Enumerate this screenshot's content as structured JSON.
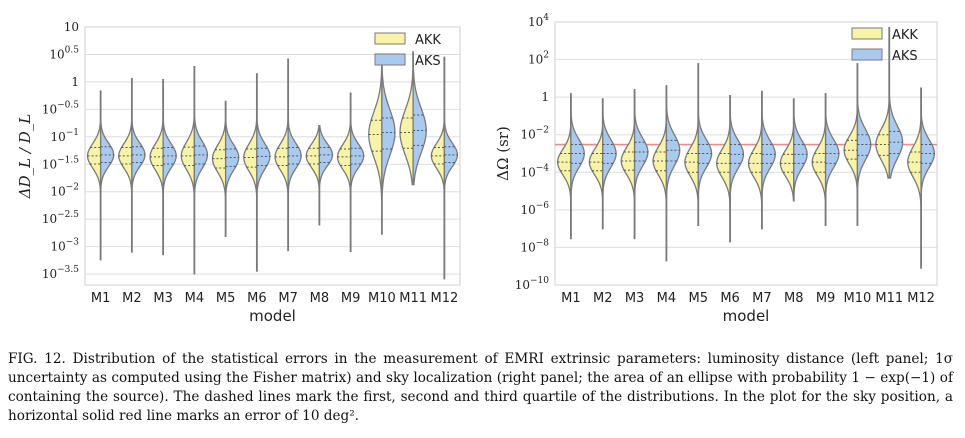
{
  "chart_data": [
    {
      "type": "violin",
      "panel": "left",
      "xlabel": "model",
      "ylabel": "ΔD_L / D_L",
      "yscale": "log",
      "ylim": [
        0.0002,
        10
      ],
      "yticks": [
        {
          "v": 10,
          "label": "10"
        },
        {
          "v": 3.162,
          "label": "10^0.5"
        },
        {
          "v": 1,
          "label": "1"
        },
        {
          "v": 0.3162,
          "label": "10^−0.5"
        },
        {
          "v": 0.1,
          "label": "10^−1"
        },
        {
          "v": 0.03162,
          "label": "10^−1.5"
        },
        {
          "v": 0.01,
          "label": "10^−2"
        },
        {
          "v": 0.003162,
          "label": "10^−2.5"
        },
        {
          "v": 0.001,
          "label": "10^−3"
        },
        {
          "v": 0.0003162,
          "label": "10^−3.5"
        }
      ],
      "categories": [
        "M1",
        "M2",
        "M3",
        "M4",
        "M5",
        "M6",
        "M7",
        "M8",
        "M9",
        "M10",
        "M11",
        "M12"
      ],
      "legend": [
        "AKK",
        "AKS"
      ],
      "legend_position": "top-right",
      "colors": {
        "AKK": "#f7f3a8",
        "AKS": "#a9c9ef",
        "outline": "#7a7a7a"
      },
      "series": [
        {
          "name": "AKK",
          "stats": [
            {
              "min": 0.00058,
              "q1": 0.032,
              "median": 0.045,
              "q3": 0.064,
              "max": 0.68
            },
            {
              "min": 0.0008,
              "q1": 0.032,
              "median": 0.045,
              "q3": 0.064,
              "max": 1.15
            },
            {
              "min": 0.00072,
              "q1": 0.03,
              "median": 0.043,
              "q3": 0.062,
              "max": 1.1
            },
            {
              "min": 0.00032,
              "q1": 0.03,
              "median": 0.045,
              "q3": 0.065,
              "max": 1.9
            },
            {
              "min": 0.00155,
              "q1": 0.027,
              "median": 0.04,
              "q3": 0.058,
              "max": 0.44
            },
            {
              "min": 0.00036,
              "q1": 0.028,
              "median": 0.042,
              "q3": 0.06,
              "max": 1.4
            },
            {
              "min": 0.00085,
              "q1": 0.03,
              "median": 0.043,
              "q3": 0.062,
              "max": 2.6
            },
            {
              "min": 0.0025,
              "q1": 0.032,
              "median": 0.045,
              "q3": 0.062,
              "max": 0.16
            },
            {
              "min": 0.00082,
              "q1": 0.03,
              "median": 0.043,
              "q3": 0.06,
              "max": 0.62
            },
            {
              "min": 0.0017,
              "q1": 0.055,
              "median": 0.11,
              "q3": 0.2,
              "max": 2.4
            },
            {
              "min": 0.0135,
              "q1": 0.062,
              "median": 0.12,
              "q3": 0.22,
              "max": 3.5
            },
            {
              "min": 0.00026,
              "q1": 0.032,
              "median": 0.045,
              "q3": 0.064,
              "max": 2.8
            }
          ]
        },
        {
          "name": "AKS",
          "stats": [
            {
              "min": 0.00058,
              "q1": 0.034,
              "median": 0.047,
              "q3": 0.066,
              "max": 0.68
            },
            {
              "min": 0.0008,
              "q1": 0.034,
              "median": 0.047,
              "q3": 0.066,
              "max": 1.15
            },
            {
              "min": 0.00072,
              "q1": 0.032,
              "median": 0.045,
              "q3": 0.064,
              "max": 1.1
            },
            {
              "min": 0.00032,
              "q1": 0.032,
              "median": 0.047,
              "q3": 0.068,
              "max": 1.9
            },
            {
              "min": 0.00155,
              "q1": 0.029,
              "median": 0.042,
              "q3": 0.06,
              "max": 0.44
            },
            {
              "min": 0.00036,
              "q1": 0.03,
              "median": 0.044,
              "q3": 0.062,
              "max": 1.4
            },
            {
              "min": 0.00085,
              "q1": 0.032,
              "median": 0.045,
              "q3": 0.064,
              "max": 2.6
            },
            {
              "min": 0.0025,
              "q1": 0.034,
              "median": 0.047,
              "q3": 0.064,
              "max": 0.16
            },
            {
              "min": 0.00082,
              "q1": 0.032,
              "median": 0.045,
              "q3": 0.062,
              "max": 0.62
            },
            {
              "min": 0.0017,
              "q1": 0.06,
              "median": 0.12,
              "q3": 0.22,
              "max": 2.4
            },
            {
              "min": 0.0135,
              "q1": 0.07,
              "median": 0.13,
              "q3": 0.25,
              "max": 3.5
            },
            {
              "min": 0.00026,
              "q1": 0.034,
              "median": 0.047,
              "q3": 0.066,
              "max": 2.8
            }
          ]
        }
      ]
    },
    {
      "type": "violin",
      "panel": "right",
      "xlabel": "model",
      "ylabel": "ΔΩ (sr)",
      "yscale": "log",
      "ylim": [
        1e-10,
        10000
      ],
      "yticks": [
        {
          "v": 10000,
          "label": "10^4"
        },
        {
          "v": 100,
          "label": "10^2"
        },
        {
          "v": 1,
          "label": "1"
        },
        {
          "v": 0.01,
          "label": "10^−2"
        },
        {
          "v": 0.0001,
          "label": "10^−4"
        },
        {
          "v": 1e-06,
          "label": "10^−6"
        },
        {
          "v": 1e-08,
          "label": "10^−8"
        },
        {
          "v": 1e-10,
          "label": "10^−10"
        }
      ],
      "reference_line": {
        "value": 0.003,
        "color": "#f08a8a"
      },
      "categories": [
        "M1",
        "M2",
        "M3",
        "M4",
        "M5",
        "M6",
        "M7",
        "M8",
        "M9",
        "M10",
        "M11",
        "M12"
      ],
      "legend": [
        "AKK",
        "AKS"
      ],
      "legend_position": "top-right",
      "colors": {
        "AKK": "#f7f3a8",
        "AKS": "#a9c9ef",
        "outline": "#7a7a7a"
      },
      "series": [
        {
          "name": "AKK",
          "stats": [
            {
              "min": 3e-08,
              "q1": 0.00012,
              "median": 0.00035,
              "q3": 0.001,
              "max": 1.5
            },
            {
              "min": 1e-07,
              "q1": 0.00012,
              "median": 0.00035,
              "q3": 0.001,
              "max": 0.8
            },
            {
              "min": 3e-08,
              "q1": 0.00013,
              "median": 0.0004,
              "q3": 0.0012,
              "max": 2.5
            },
            {
              "min": 2e-09,
              "q1": 0.00012,
              "median": 0.0004,
              "q3": 0.0012,
              "max": 4.0
            },
            {
              "min": 1.5e-07,
              "q1": 0.0001,
              "median": 0.00035,
              "q3": 0.001,
              "max": 60
            },
            {
              "min": 2e-08,
              "q1": 0.0001,
              "median": 0.0003,
              "q3": 0.001,
              "max": 1.2
            },
            {
              "min": 1e-07,
              "q1": 0.0001,
              "median": 0.0003,
              "q3": 0.001,
              "max": 2.0
            },
            {
              "min": 3e-06,
              "q1": 0.0001,
              "median": 0.0003,
              "q3": 0.0009,
              "max": 0.8
            },
            {
              "min": 1.5e-07,
              "q1": 0.0001,
              "median": 0.00035,
              "q3": 0.001,
              "max": 1.5
            },
            {
              "min": 1.5e-07,
              "q1": 0.0005,
              "median": 0.0015,
              "q3": 0.005,
              "max": 60
            },
            {
              "min": 5e-05,
              "q1": 0.0008,
              "median": 0.003,
              "q3": 0.01,
              "max": 5000
            },
            {
              "min": 8e-10,
              "q1": 0.0001,
              "median": 0.00035,
              "q3": 0.0012,
              "max": 3.0
            }
          ]
        },
        {
          "name": "AKS",
          "stats": [
            {
              "min": 3e-08,
              "q1": 0.0003,
              "median": 0.001,
              "q3": 0.003,
              "max": 1.5
            },
            {
              "min": 1e-07,
              "q1": 0.0003,
              "median": 0.001,
              "q3": 0.003,
              "max": 0.8
            },
            {
              "min": 3e-08,
              "q1": 0.0004,
              "median": 0.0012,
              "q3": 0.004,
              "max": 2.5
            },
            {
              "min": 2e-09,
              "q1": 0.0004,
              "median": 0.0015,
              "q3": 0.005,
              "max": 4.0
            },
            {
              "min": 1.5e-07,
              "q1": 0.0003,
              "median": 0.001,
              "q3": 0.003,
              "max": 60
            },
            {
              "min": 2e-08,
              "q1": 0.0003,
              "median": 0.0009,
              "q3": 0.003,
              "max": 1.2
            },
            {
              "min": 1e-07,
              "q1": 0.0003,
              "median": 0.0009,
              "q3": 0.003,
              "max": 2.0
            },
            {
              "min": 3e-06,
              "q1": 0.0003,
              "median": 0.0009,
              "q3": 0.003,
              "max": 0.8
            },
            {
              "min": 1.5e-07,
              "q1": 0.0003,
              "median": 0.001,
              "q3": 0.003,
              "max": 1.5
            },
            {
              "min": 1.5e-07,
              "q1": 0.0008,
              "median": 0.003,
              "q3": 0.01,
              "max": 60
            },
            {
              "min": 5e-05,
              "q1": 0.001,
              "median": 0.004,
              "q3": 0.015,
              "max": 5000
            },
            {
              "min": 8e-10,
              "q1": 0.0003,
              "median": 0.001,
              "q3": 0.003,
              "max": 3.0
            }
          ]
        }
      ]
    }
  ],
  "caption": {
    "label": "FIG. 12.",
    "text": "Distribution of the statistical errors in the measurement of EMRI extrinsic parameters: luminosity distance (left panel; 1σ uncertainty as computed using the Fisher matrix) and sky localization (right panel; the area of an ellipse with probability 1 − exp(−1) of containing the source). The dashed lines mark the first, second and third quartile of the distributions. In the plot for the sky position, a horizontal solid red line marks an error of 10 deg²."
  }
}
